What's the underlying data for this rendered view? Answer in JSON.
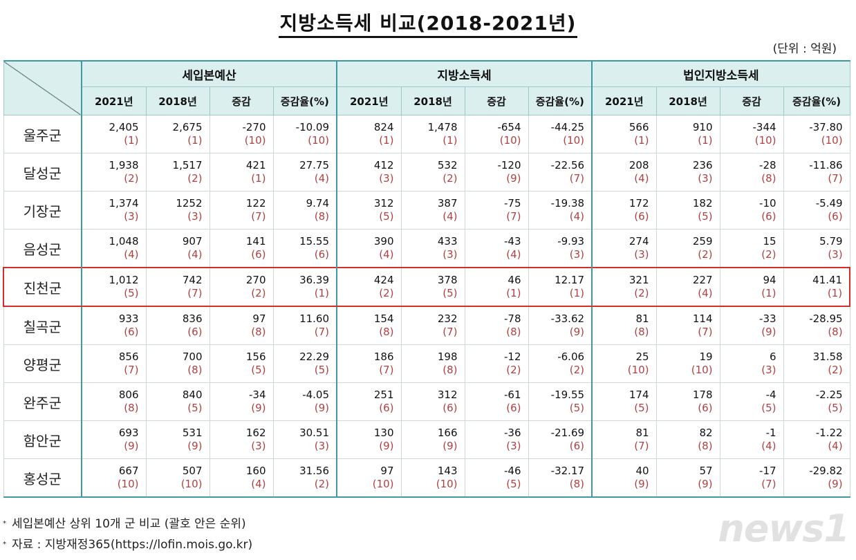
{
  "title": "지방소득세 비교(2018-2021년)",
  "unit": "(단위 : 억원)",
  "groups": [
    "세입본예산",
    "지방소득세",
    "법인지방소득세"
  ],
  "subheaders": [
    "2021년",
    "2018년",
    "증감",
    "증감율(%)"
  ],
  "rows": [
    {
      "name": "울주군",
      "cells": [
        [
          "2,405",
          "(1)"
        ],
        [
          "2,675",
          "(1)"
        ],
        [
          "-270",
          "(10)"
        ],
        [
          "-10.09",
          "(10)"
        ],
        [
          "824",
          "(1)"
        ],
        [
          "1,478",
          "(1)"
        ],
        [
          "-654",
          "(10)"
        ],
        [
          "-44.25",
          "(10)"
        ],
        [
          "566",
          "(1)"
        ],
        [
          "910",
          "(1)"
        ],
        [
          "-344",
          "(10)"
        ],
        [
          "-37.80",
          "(10)"
        ]
      ]
    },
    {
      "name": "달성군",
      "cells": [
        [
          "1,938",
          "(2)"
        ],
        [
          "1,517",
          "(2)"
        ],
        [
          "421",
          "(1)"
        ],
        [
          "27.75",
          "(4)"
        ],
        [
          "412",
          "(3)"
        ],
        [
          "532",
          "(2)"
        ],
        [
          "-120",
          "(9)"
        ],
        [
          "-22.56",
          "(7)"
        ],
        [
          "208",
          "(4)"
        ],
        [
          "236",
          "(3)"
        ],
        [
          "-28",
          "(8)"
        ],
        [
          "-11.86",
          "(7)"
        ]
      ]
    },
    {
      "name": "기장군",
      "cells": [
        [
          "1,374",
          "(3)"
        ],
        [
          "1252",
          "(3)"
        ],
        [
          "122",
          "(7)"
        ],
        [
          "9.74",
          "(8)"
        ],
        [
          "312",
          "(5)"
        ],
        [
          "387",
          "(4)"
        ],
        [
          "-75",
          "(7)"
        ],
        [
          "-19.38",
          "(4)"
        ],
        [
          "172",
          "(6)"
        ],
        [
          "182",
          "(5)"
        ],
        [
          "-10",
          "(6)"
        ],
        [
          "-5.49",
          "(6)"
        ]
      ]
    },
    {
      "name": "음성군",
      "cells": [
        [
          "1,048",
          "(4)"
        ],
        [
          "907",
          "(4)"
        ],
        [
          "141",
          "(6)"
        ],
        [
          "15.55",
          "(6)"
        ],
        [
          "390",
          "(4)"
        ],
        [
          "433",
          "(3)"
        ],
        [
          "-43",
          "(4)"
        ],
        [
          "-9.93",
          "(3)"
        ],
        [
          "274",
          "(3)"
        ],
        [
          "259",
          "(2)"
        ],
        [
          "15",
          "(2)"
        ],
        [
          "5.79",
          "(3)"
        ]
      ]
    },
    {
      "name": "진천군",
      "highlight": true,
      "cells": [
        [
          "1,012",
          "(5)"
        ],
        [
          "742",
          "(7)"
        ],
        [
          "270",
          "(2)"
        ],
        [
          "36.39",
          "(1)"
        ],
        [
          "424",
          "(2)"
        ],
        [
          "378",
          "(5)"
        ],
        [
          "46",
          "(1)"
        ],
        [
          "12.17",
          "(1)"
        ],
        [
          "321",
          "(2)"
        ],
        [
          "227",
          "(4)"
        ],
        [
          "94",
          "(1)"
        ],
        [
          "41.41",
          "(1)"
        ]
      ]
    },
    {
      "name": "칠곡군",
      "cells": [
        [
          "933",
          "(6)"
        ],
        [
          "836",
          "(6)"
        ],
        [
          "97",
          "(8)"
        ],
        [
          "11.60",
          "(7)"
        ],
        [
          "154",
          "(8)"
        ],
        [
          "232",
          "(7)"
        ],
        [
          "-78",
          "(8)"
        ],
        [
          "-33.62",
          "(9)"
        ],
        [
          "81",
          "(8)"
        ],
        [
          "114",
          "(7)"
        ],
        [
          "-33",
          "(9)"
        ],
        [
          "-28.95",
          "(8)"
        ]
      ]
    },
    {
      "name": "양평군",
      "cells": [
        [
          "856",
          "(7)"
        ],
        [
          "700",
          "(8)"
        ],
        [
          "156",
          "(5)"
        ],
        [
          "22.29",
          "(5)"
        ],
        [
          "186",
          "(7)"
        ],
        [
          "198",
          "(8)"
        ],
        [
          "-12",
          "(2)"
        ],
        [
          "-6.06",
          "(2)"
        ],
        [
          "25",
          "(10)"
        ],
        [
          "19",
          "(10)"
        ],
        [
          "6",
          "(3)"
        ],
        [
          "31.58",
          "(2)"
        ]
      ]
    },
    {
      "name": "완주군",
      "cells": [
        [
          "806",
          "(8)"
        ],
        [
          "840",
          "(5)"
        ],
        [
          "-34",
          "(9)"
        ],
        [
          "-4.05",
          "(9)"
        ],
        [
          "251",
          "(6)"
        ],
        [
          "312",
          "(6)"
        ],
        [
          "-61",
          "(6)"
        ],
        [
          "-19.55",
          "(5)"
        ],
        [
          "174",
          "(5)"
        ],
        [
          "178",
          "(6)"
        ],
        [
          "-4",
          "(5)"
        ],
        [
          "-2.25",
          "(5)"
        ]
      ]
    },
    {
      "name": "함안군",
      "cells": [
        [
          "693",
          "(9)"
        ],
        [
          "531",
          "(9)"
        ],
        [
          "162",
          "(3)"
        ],
        [
          "30.51",
          "(3)"
        ],
        [
          "130",
          "(9)"
        ],
        [
          "166",
          "(9)"
        ],
        [
          "-36",
          "(3)"
        ],
        [
          "-21.69",
          "(6)"
        ],
        [
          "81",
          "(7)"
        ],
        [
          "82",
          "(8)"
        ],
        [
          "-1",
          "(4)"
        ],
        [
          "-1.22",
          "(4)"
        ]
      ]
    },
    {
      "name": "홍성군",
      "cells": [
        [
          "667",
          "(10)"
        ],
        [
          "507",
          "(10)"
        ],
        [
          "160",
          "(4)"
        ],
        [
          "31.56",
          "(2)"
        ],
        [
          "97",
          "(10)"
        ],
        [
          "143",
          "(10)"
        ],
        [
          "-46",
          "(5)"
        ],
        [
          "-32.17",
          "(8)"
        ],
        [
          "40",
          "(9)"
        ],
        [
          "57",
          "(9)"
        ],
        [
          "-17",
          "(7)"
        ],
        [
          "-29.82",
          "(9)"
        ]
      ]
    }
  ],
  "notes": [
    "세입본예산 상위 10개 군 비교 (괄호 안은 순위)",
    "자료 : 지방재정365(https://lofin.mois.go.kr)"
  ],
  "note_marker": "*",
  "logo": "news1",
  "colors": {
    "header_bg": "#dcefef",
    "group_border": "#3d9aa0",
    "highlight": "#d62b2b",
    "rank": "#b04040"
  }
}
